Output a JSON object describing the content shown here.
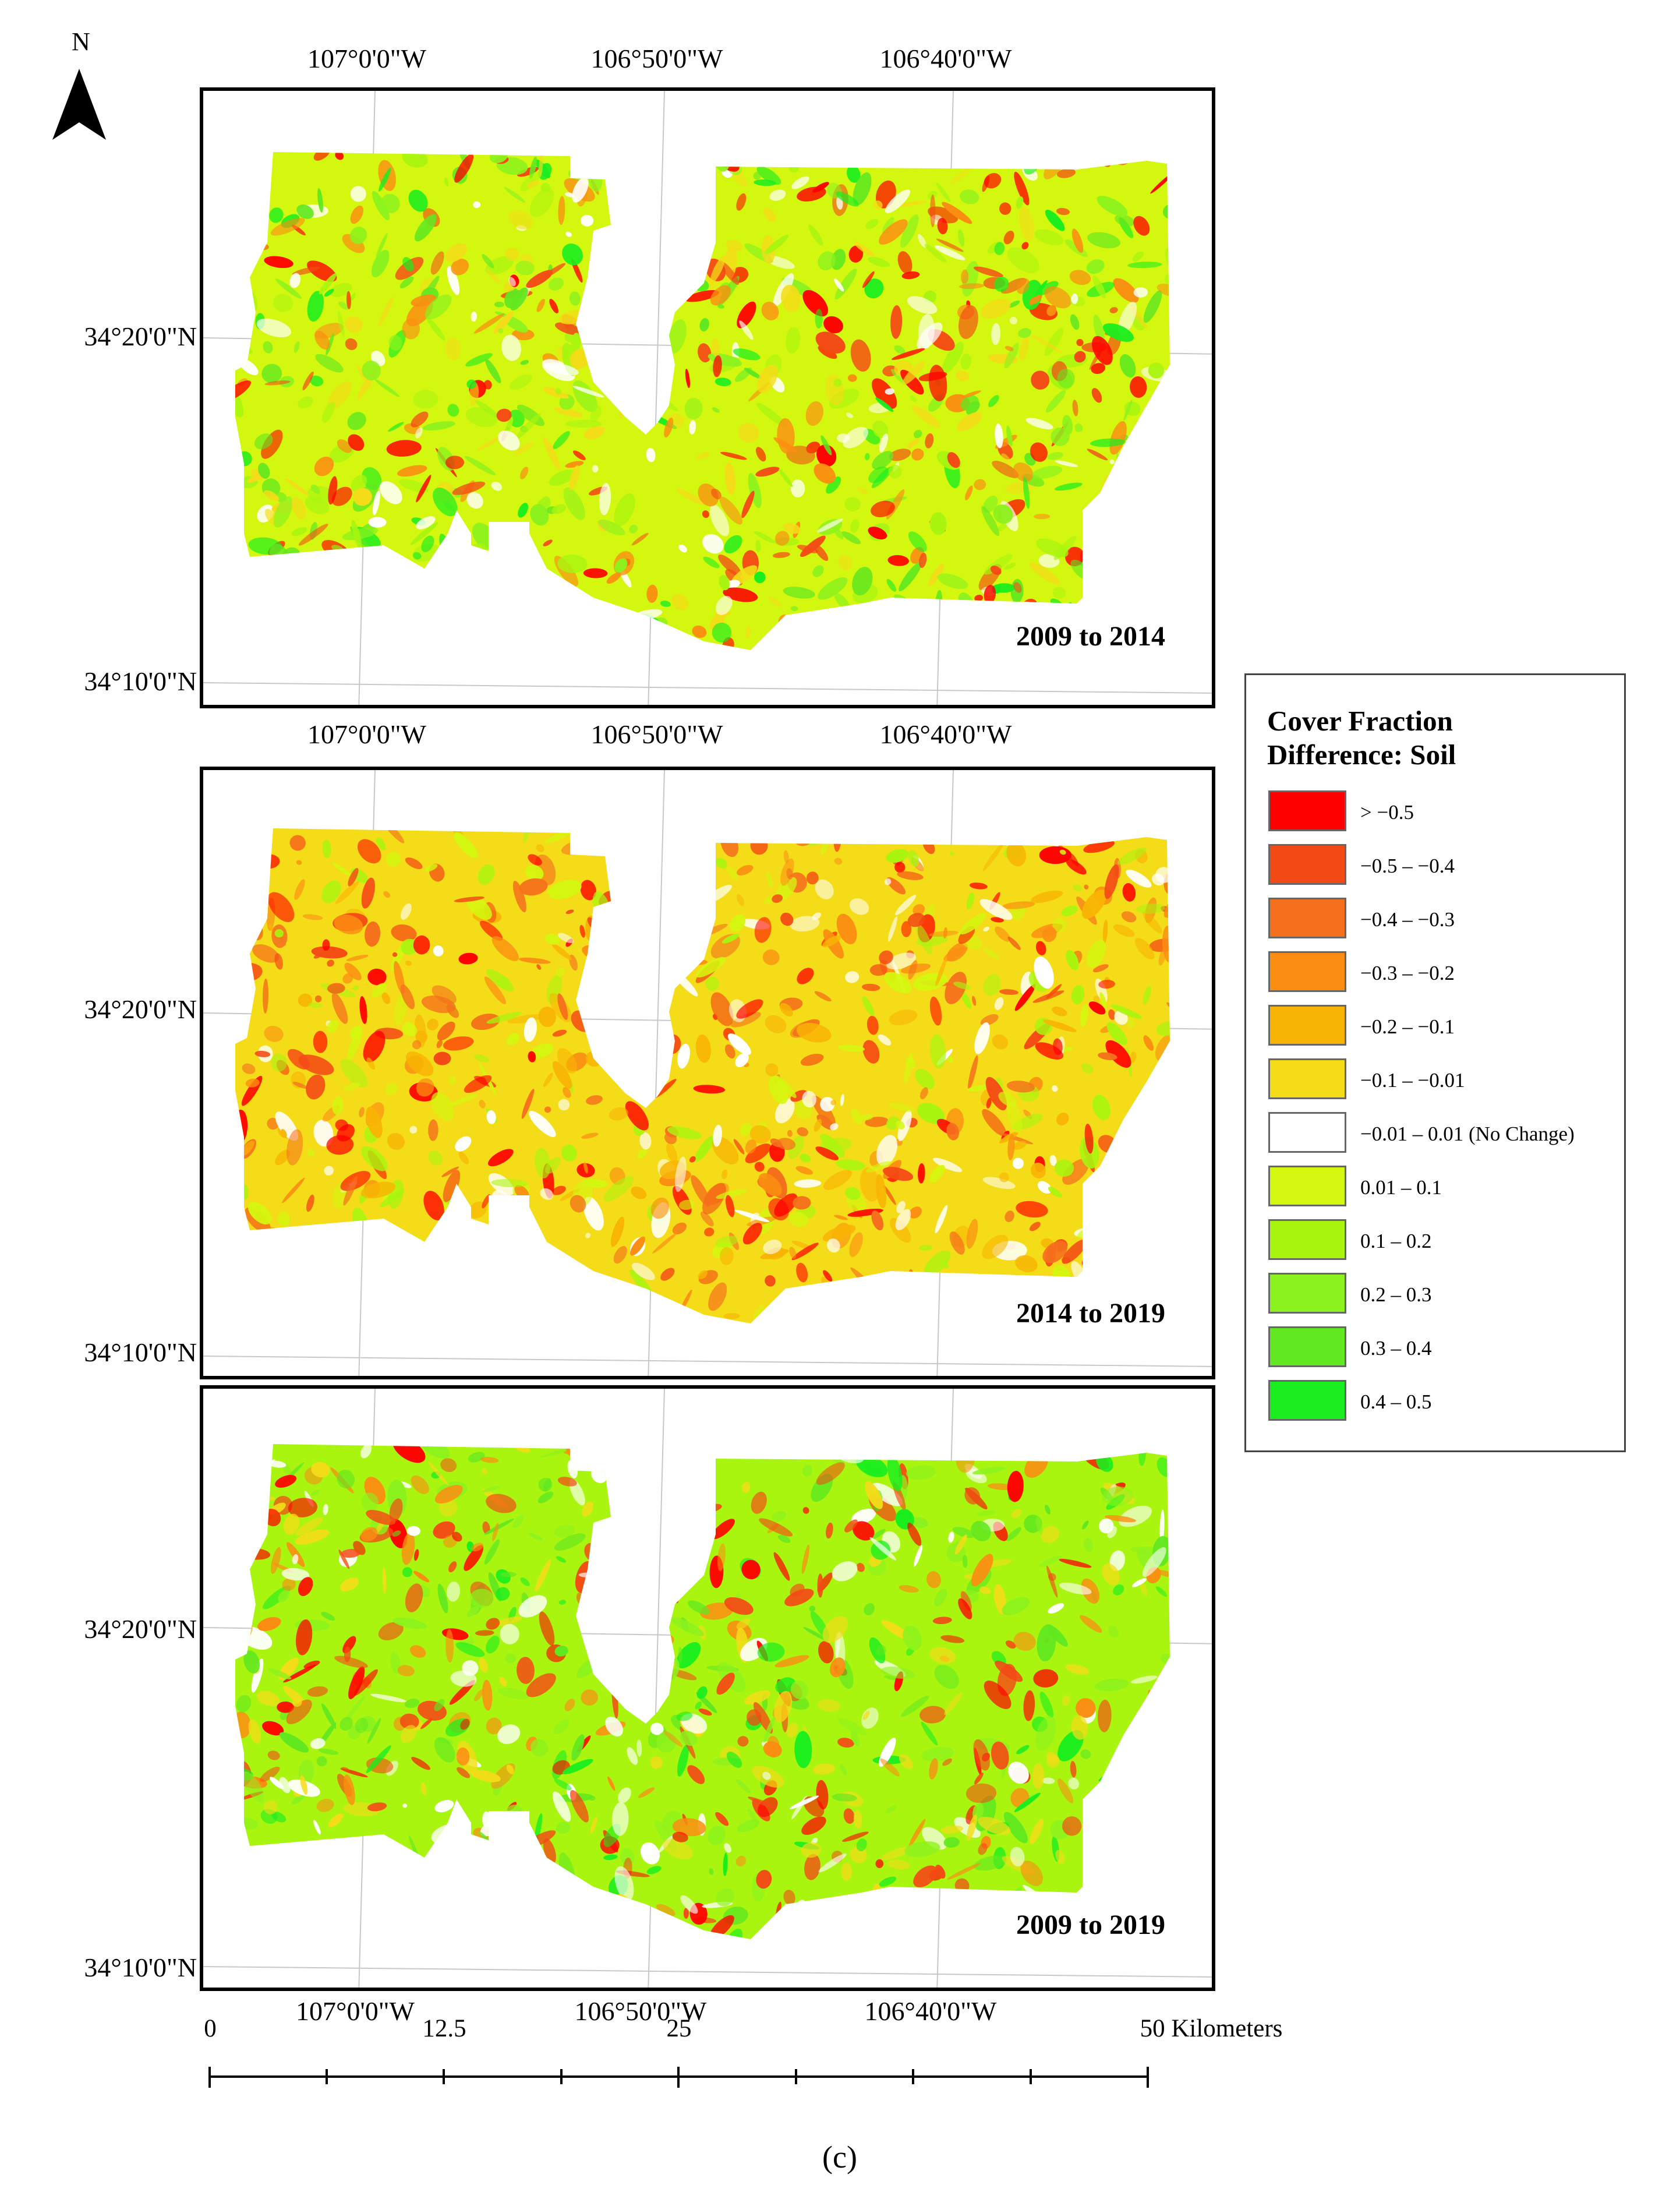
{
  "north_arrow": {
    "label": "N",
    "icon": "north-arrow-icon"
  },
  "panels": [
    {
      "id": "2009-2014",
      "period_label": "2009 to 2014",
      "lon_labels_top": [
        "107°0'0\"W",
        "106°50'0\"W",
        "106°40'0\"W"
      ],
      "lat_labels": [
        "34°20'0\"N",
        "34°10'0\"N"
      ],
      "dominant_class": "0.01 – 0.1"
    },
    {
      "id": "2014-2019",
      "period_label": "2014 to 2019",
      "lon_labels_top": [
        "107°0'0\"W",
        "106°50'0\"W",
        "106°40'0\"W"
      ],
      "lat_labels": [
        "34°20'0\"N",
        "34°10'0\"N"
      ],
      "dominant_class": "−0.1 – −0.01"
    },
    {
      "id": "2009-2019",
      "period_label": "2009 to 2019",
      "lon_labels_bottom": [
        "107°0'0\"W",
        "106°50'0\"W",
        "106°40'0\"W"
      ],
      "lat_labels": [
        "34°20'0\"N",
        "34°10'0\"N"
      ],
      "dominant_class": "0.1 – 0.2"
    }
  ],
  "legend": {
    "title_line1": "Cover Fraction",
    "title_line2": "Difference: Soil",
    "items": [
      {
        "label": "> −0.5",
        "color": "#ff0000"
      },
      {
        "label": "−0.5 – −0.4",
        "color": "#f44a15"
      },
      {
        "label": "−0.4 – −0.3",
        "color": "#f5701c"
      },
      {
        "label": "−0.3 – −0.2",
        "color": "#fb8e12"
      },
      {
        "label": "−0.2 – −0.1",
        "color": "#f8b404"
      },
      {
        "label": "−0.1 – −0.01",
        "color": "#f4dc18"
      },
      {
        "label": "−0.01 – 0.01 (No Change)",
        "color": "#ffffff"
      },
      {
        "label": "0.01 – 0.1",
        "color": "#d4f70f"
      },
      {
        "label": "0.1 – 0.2",
        "color": "#a9f50f"
      },
      {
        "label": "0.2 – 0.3",
        "color": "#8cf21d"
      },
      {
        "label": "0.3 – 0.4",
        "color": "#61e820"
      },
      {
        "label": "0.4 – 0.5",
        "color": "#1aee1f"
      }
    ]
  },
  "scale_bar": {
    "labels": [
      "0",
      "12.5",
      "25",
      "50 Kilometers"
    ],
    "unit": "Kilometers",
    "max_km": 50
  },
  "caption": "(c)"
}
